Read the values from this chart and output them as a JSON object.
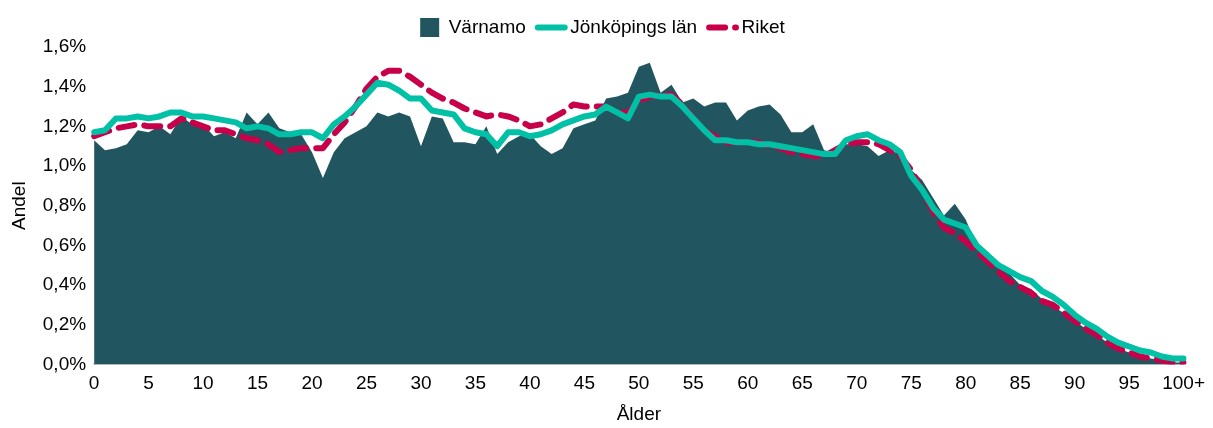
{
  "chart_data": {
    "type": "line",
    "xlabel": "Ålder",
    "ylabel": "Andel",
    "legend": "top",
    "grid": false,
    "marker": "none",
    "categories": [
      "0",
      null,
      null,
      null,
      null,
      "5",
      null,
      null,
      null,
      null,
      "10",
      null,
      null,
      null,
      null,
      "15",
      null,
      null,
      null,
      null,
      "20",
      null,
      null,
      null,
      null,
      "25",
      null,
      null,
      null,
      null,
      "30",
      null,
      null,
      null,
      null,
      "35",
      null,
      null,
      null,
      null,
      "40",
      null,
      null,
      null,
      null,
      "45",
      null,
      null,
      null,
      null,
      "50",
      null,
      null,
      null,
      null,
      "55",
      null,
      null,
      null,
      null,
      "60",
      null,
      null,
      null,
      null,
      "65",
      null,
      null,
      null,
      null,
      "70",
      null,
      null,
      null,
      null,
      "75",
      null,
      null,
      null,
      null,
      "80",
      null,
      null,
      null,
      null,
      "85",
      null,
      null,
      null,
      null,
      "90",
      null,
      null,
      null,
      null,
      "95",
      null,
      null,
      null,
      null,
      "100+"
    ],
    "ylim": [
      0,
      1.6
    ],
    "yticks": [
      {
        "value": 0,
        "label": "0,0%"
      },
      {
        "value": 0.2,
        "label": "0,2%"
      },
      {
        "value": 0.4,
        "label": "0,4%"
      },
      {
        "value": 0.6,
        "label": "0,6%"
      },
      {
        "value": 0.8,
        "label": "0,8%"
      },
      {
        "value": 1.0,
        "label": "1,0%"
      },
      {
        "value": 1.2,
        "label": "1,2%"
      },
      {
        "value": 1.4,
        "label": "1,4%"
      },
      {
        "value": 1.6,
        "label": "1,6%"
      }
    ],
    "series": [
      {
        "name": "Värnamo",
        "type": "area",
        "color": "#215660",
        "values": [
          1.13,
          1.08,
          1.09,
          1.11,
          1.18,
          1.17,
          1.2,
          1.16,
          1.25,
          1.21,
          1.21,
          1.15,
          1.17,
          1.14,
          1.27,
          1.21,
          1.27,
          1.19,
          1.17,
          1.16,
          1.07,
          0.94,
          1.07,
          1.14,
          1.17,
          1.2,
          1.27,
          1.25,
          1.27,
          1.25,
          1.1,
          1.25,
          1.24,
          1.12,
          1.12,
          1.11,
          1.2,
          1.06,
          1.12,
          1.15,
          1.16,
          1.1,
          1.06,
          1.09,
          1.19,
          1.21,
          1.23,
          1.34,
          1.35,
          1.37,
          1.5,
          1.52,
          1.37,
          1.41,
          1.32,
          1.34,
          1.3,
          1.32,
          1.32,
          1.23,
          1.28,
          1.3,
          1.31,
          1.26,
          1.17,
          1.17,
          1.21,
          1.08,
          1.07,
          1.11,
          1.11,
          1.1,
          1.05,
          1.08,
          1.06,
          0.98,
          0.93,
          0.84,
          0.75,
          0.81,
          0.73,
          0.6,
          0.54,
          0.5,
          0.46,
          0.4,
          0.38,
          0.33,
          0.29,
          0.26,
          0.22,
          0.18,
          0.15,
          0.11,
          0.08,
          0.06,
          0.04,
          0.03,
          0.02,
          0.01,
          0.01
        ]
      },
      {
        "name": "Jönköpings län",
        "type": "line",
        "color": "#00c0a5",
        "line_style": "solid",
        "values": [
          1.17,
          1.18,
          1.24,
          1.24,
          1.25,
          1.24,
          1.25,
          1.27,
          1.27,
          1.25,
          1.25,
          1.24,
          1.23,
          1.22,
          1.19,
          1.2,
          1.19,
          1.16,
          1.16,
          1.17,
          1.17,
          1.14,
          1.21,
          1.25,
          1.3,
          1.36,
          1.42,
          1.41,
          1.38,
          1.34,
          1.34,
          1.28,
          1.27,
          1.26,
          1.19,
          1.17,
          1.16,
          1.1,
          1.17,
          1.17,
          1.15,
          1.16,
          1.18,
          1.21,
          1.23,
          1.25,
          1.26,
          1.3,
          1.27,
          1.24,
          1.35,
          1.36,
          1.35,
          1.35,
          1.3,
          1.24,
          1.18,
          1.13,
          1.13,
          1.12,
          1.12,
          1.11,
          1.11,
          1.1,
          1.09,
          1.08,
          1.07,
          1.06,
          1.06,
          1.13,
          1.15,
          1.16,
          1.13,
          1.11,
          1.07,
          0.95,
          0.88,
          0.79,
          0.73,
          0.71,
          0.69,
          0.6,
          0.55,
          0.5,
          0.47,
          0.44,
          0.42,
          0.37,
          0.34,
          0.3,
          0.25,
          0.21,
          0.18,
          0.14,
          0.11,
          0.09,
          0.07,
          0.06,
          0.04,
          0.03,
          0.03
        ]
      },
      {
        "name": "Riket",
        "type": "line",
        "color": "#c8004a",
        "line_style": "dashed",
        "values": [
          1.15,
          1.17,
          1.19,
          1.2,
          1.21,
          1.2,
          1.2,
          1.2,
          1.24,
          1.22,
          1.2,
          1.18,
          1.18,
          1.16,
          1.14,
          1.13,
          1.11,
          1.07,
          1.08,
          1.09,
          1.09,
          1.09,
          1.16,
          1.22,
          1.3,
          1.39,
          1.45,
          1.48,
          1.48,
          1.45,
          1.41,
          1.37,
          1.34,
          1.32,
          1.29,
          1.27,
          1.25,
          1.26,
          1.25,
          1.23,
          1.2,
          1.21,
          1.24,
          1.27,
          1.31,
          1.3,
          1.3,
          1.3,
          1.27,
          1.27,
          1.33,
          1.35,
          1.36,
          1.36,
          1.31,
          1.24,
          1.18,
          1.15,
          1.12,
          1.12,
          1.12,
          1.12,
          1.1,
          1.09,
          1.07,
          1.06,
          1.05,
          1.05,
          1.08,
          1.11,
          1.12,
          1.12,
          1.11,
          1.08,
          1.05,
          0.98,
          0.88,
          0.77,
          0.69,
          0.66,
          0.62,
          0.57,
          0.52,
          0.47,
          0.42,
          0.39,
          0.36,
          0.32,
          0.3,
          0.26,
          0.22,
          0.18,
          0.15,
          0.11,
          0.08,
          0.06,
          0.04,
          0.03,
          0.02,
          0.01,
          0.01
        ]
      }
    ]
  }
}
